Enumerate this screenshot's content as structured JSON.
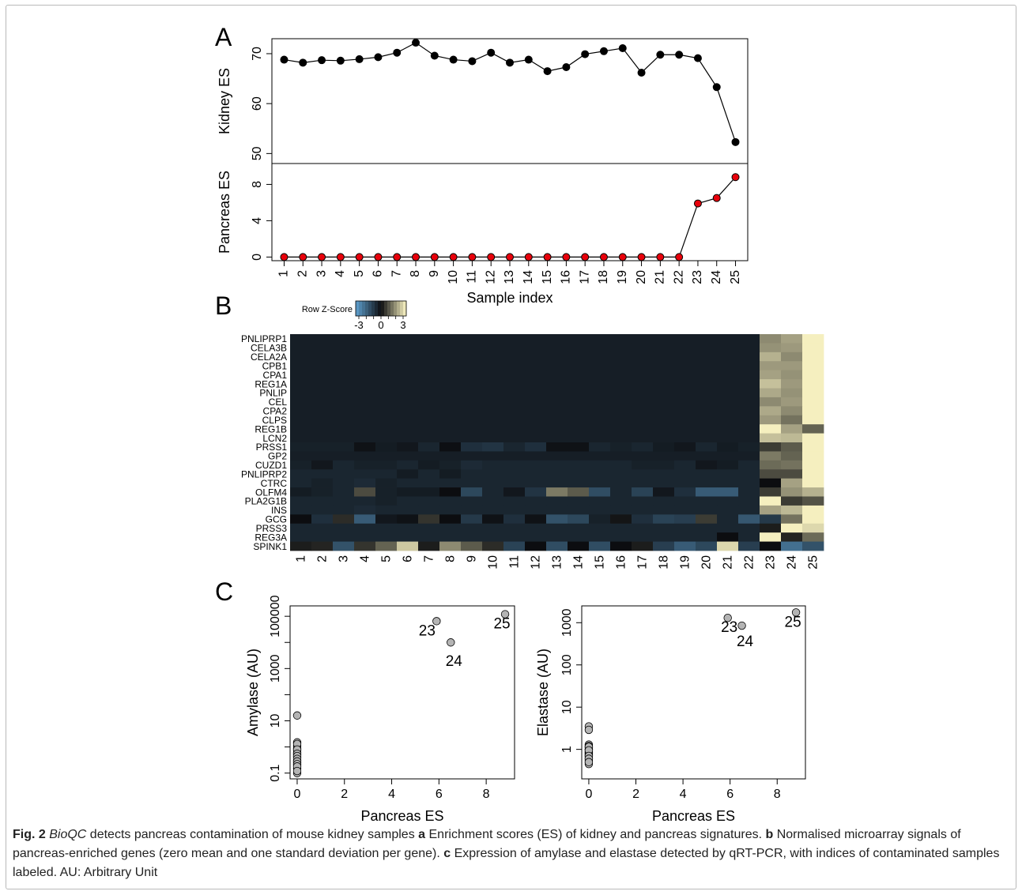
{
  "caption": {
    "fig_number": "Fig. 2",
    "tool_name": "BioQC",
    "lead": " detects pancreas contamination of mouse kidney samples ",
    "a_letter": "a",
    "a_text": " Enrichment scores (ES) of kidney and pancreas signatures. ",
    "b_letter": "b",
    "b_text": " Normalised microarray signals of pancreas-enriched genes (zero mean and one standard deviation per gene). ",
    "c_letter": "c",
    "c_text": " Expression of amylase and elastase detected by qRT-PCR, with indices of contaminated samples labeled. AU: Arbitrary Unit"
  },
  "chart_data": [
    {
      "type": "line",
      "panel_label": "A",
      "ylabel": "Kidney ES",
      "x": [
        1,
        2,
        3,
        4,
        5,
        6,
        7,
        8,
        9,
        10,
        11,
        12,
        13,
        14,
        15,
        16,
        17,
        18,
        19,
        20,
        21,
        22,
        23,
        24,
        25
      ],
      "y": [
        68.8,
        68.2,
        68.7,
        68.6,
        68.9,
        69.3,
        70.2,
        72.2,
        69.6,
        68.8,
        68.5,
        70.2,
        68.2,
        68.8,
        66.5,
        67.3,
        69.9,
        70.5,
        71.1,
        66.2,
        69.8,
        69.8,
        69.1,
        63.3,
        52.3
      ],
      "yticks": [
        50,
        60,
        70
      ],
      "ylim": [
        48,
        73
      ],
      "marker_color": "#000000"
    },
    {
      "type": "line",
      "panel_label": "",
      "ylabel": "Pancreas ES",
      "xlabel": "Sample index",
      "x": [
        1,
        2,
        3,
        4,
        5,
        6,
        7,
        8,
        9,
        10,
        11,
        12,
        13,
        14,
        15,
        16,
        17,
        18,
        19,
        20,
        21,
        22,
        23,
        24,
        25
      ],
      "x_tick_labels": [
        "1",
        "2",
        "3",
        "4",
        "5",
        "6",
        "7",
        "8",
        "9",
        "10",
        "11",
        "12",
        "13",
        "14",
        "15",
        "16",
        "17",
        "18",
        "19",
        "20",
        "21",
        "22",
        "23",
        "24",
        "25"
      ],
      "y": [
        0,
        0,
        0,
        0,
        0,
        0,
        0,
        0,
        0,
        0,
        0,
        0,
        0,
        0,
        0,
        0,
        0,
        0,
        0,
        0,
        0,
        0,
        5.9,
        6.5,
        8.8
      ],
      "yticks": [
        0,
        4,
        8
      ],
      "ylim": [
        -0.4,
        10.3
      ],
      "marker_color": "#e8000b"
    },
    {
      "type": "heatmap",
      "panel_label": "B",
      "legend_title": "Row Z-Score",
      "legend_ticks": [
        "-3",
        "0",
        "3"
      ],
      "colors": {
        "low": "#5fa0cf",
        "mid": "#0c0d10",
        "high": "#fdf7c5"
      },
      "rows": [
        "PNLIPRP1",
        "CELA3B",
        "CELA2A",
        "CPB1",
        "CPA1",
        "REG1A",
        "PNLIP",
        "CEL",
        "CPA2",
        "CLPS",
        "REG1B",
        "LCN2",
        "PRSS1",
        "GP2",
        "CUZD1",
        "PNLIPRP2",
        "CTRC",
        "OLFM4",
        "PLA2G1B",
        "INS",
        "GCG",
        "PRSS3",
        "REG3A",
        "SPINK1"
      ],
      "columns": [
        "1",
        "2",
        "3",
        "4",
        "5",
        "6",
        "7",
        "8",
        "9",
        "10",
        "11",
        "12",
        "13",
        "14",
        "15",
        "16",
        "17",
        "18",
        "19",
        "20",
        "21",
        "22",
        "23",
        "24",
        "25"
      ],
      "values": [
        [
          -0.35,
          -0.35,
          -0.35,
          -0.35,
          -0.35,
          -0.35,
          -0.35,
          -0.35,
          -0.35,
          -0.35,
          -0.35,
          -0.35,
          -0.35,
          -0.35,
          -0.35,
          -0.35,
          -0.35,
          -0.35,
          -0.35,
          -0.35,
          -0.35,
          -0.35,
          1.6,
          1.9,
          2.9
        ],
        [
          -0.35,
          -0.35,
          -0.35,
          -0.35,
          -0.35,
          -0.35,
          -0.35,
          -0.35,
          -0.35,
          -0.35,
          -0.35,
          -0.35,
          -0.35,
          -0.35,
          -0.35,
          -0.35,
          -0.35,
          -0.35,
          -0.35,
          -0.35,
          -0.35,
          -0.35,
          1.7,
          1.8,
          2.9
        ],
        [
          -0.35,
          -0.35,
          -0.35,
          -0.35,
          -0.35,
          -0.35,
          -0.35,
          -0.35,
          -0.35,
          -0.35,
          -0.35,
          -0.35,
          -0.35,
          -0.35,
          -0.35,
          -0.35,
          -0.35,
          -0.35,
          -0.35,
          -0.35,
          -0.35,
          -0.35,
          2.1,
          1.6,
          2.9
        ],
        [
          -0.35,
          -0.35,
          -0.35,
          -0.35,
          -0.35,
          -0.35,
          -0.35,
          -0.35,
          -0.35,
          -0.35,
          -0.35,
          -0.35,
          -0.35,
          -0.35,
          -0.35,
          -0.35,
          -0.35,
          -0.35,
          -0.35,
          -0.35,
          -0.35,
          -0.35,
          1.8,
          1.8,
          2.9
        ],
        [
          -0.35,
          -0.35,
          -0.35,
          -0.35,
          -0.35,
          -0.35,
          -0.35,
          -0.35,
          -0.35,
          -0.35,
          -0.35,
          -0.35,
          -0.35,
          -0.35,
          -0.35,
          -0.35,
          -0.35,
          -0.35,
          -0.35,
          -0.35,
          -0.35,
          -0.35,
          1.9,
          1.7,
          2.9
        ],
        [
          -0.35,
          -0.35,
          -0.35,
          -0.35,
          -0.35,
          -0.35,
          -0.35,
          -0.35,
          -0.35,
          -0.35,
          -0.35,
          -0.35,
          -0.35,
          -0.35,
          -0.35,
          -0.35,
          -0.35,
          -0.35,
          -0.35,
          -0.35,
          -0.35,
          -0.35,
          2.3,
          1.8,
          2.9
        ],
        [
          -0.35,
          -0.35,
          -0.35,
          -0.35,
          -0.35,
          -0.35,
          -0.35,
          -0.35,
          -0.35,
          -0.35,
          -0.35,
          -0.35,
          -0.35,
          -0.35,
          -0.35,
          -0.35,
          -0.35,
          -0.35,
          -0.35,
          -0.35,
          -0.35,
          -0.35,
          2.0,
          1.7,
          2.9
        ],
        [
          -0.35,
          -0.35,
          -0.35,
          -0.35,
          -0.35,
          -0.35,
          -0.35,
          -0.35,
          -0.35,
          -0.35,
          -0.35,
          -0.35,
          -0.35,
          -0.35,
          -0.35,
          -0.35,
          -0.35,
          -0.35,
          -0.35,
          -0.35,
          -0.35,
          -0.35,
          1.6,
          1.8,
          2.9
        ],
        [
          -0.35,
          -0.35,
          -0.35,
          -0.35,
          -0.35,
          -0.35,
          -0.35,
          -0.35,
          -0.35,
          -0.35,
          -0.35,
          -0.35,
          -0.35,
          -0.35,
          -0.35,
          -0.35,
          -0.35,
          -0.35,
          -0.35,
          -0.35,
          -0.35,
          -0.35,
          2.0,
          1.6,
          2.9
        ],
        [
          -0.35,
          -0.35,
          -0.35,
          -0.35,
          -0.35,
          -0.35,
          -0.35,
          -0.35,
          -0.35,
          -0.35,
          -0.35,
          -0.35,
          -0.35,
          -0.35,
          -0.35,
          -0.35,
          -0.35,
          -0.35,
          -0.35,
          -0.35,
          -0.35,
          -0.35,
          1.8,
          1.3,
          2.9
        ],
        [
          -0.35,
          -0.35,
          -0.35,
          -0.35,
          -0.35,
          -0.35,
          -0.35,
          -0.35,
          -0.35,
          -0.35,
          -0.35,
          -0.35,
          -0.35,
          -0.35,
          -0.35,
          -0.35,
          -0.35,
          -0.35,
          -0.35,
          -0.35,
          -0.35,
          -0.35,
          2.9,
          1.9,
          1.1
        ],
        [
          -0.35,
          -0.35,
          -0.35,
          -0.35,
          -0.35,
          -0.35,
          -0.35,
          -0.35,
          -0.35,
          -0.35,
          -0.35,
          -0.35,
          -0.35,
          -0.35,
          -0.35,
          -0.35,
          -0.35,
          -0.35,
          -0.35,
          -0.35,
          -0.35,
          -0.35,
          2.3,
          2.2,
          2.9
        ],
        [
          -0.4,
          -0.4,
          -0.4,
          -0.1,
          -0.3,
          -0.2,
          -0.5,
          -0.05,
          -0.7,
          -0.8,
          -0.5,
          -0.7,
          -0.1,
          -0.1,
          -0.5,
          -0.4,
          -0.5,
          -0.3,
          -0.2,
          -0.5,
          -0.3,
          -0.4,
          0.6,
          1.0,
          2.9
        ],
        [
          -0.35,
          -0.35,
          -0.35,
          -0.35,
          -0.35,
          -0.35,
          -0.35,
          -0.35,
          -0.35,
          -0.35,
          -0.35,
          -0.35,
          -0.35,
          -0.35,
          -0.35,
          -0.35,
          -0.35,
          -0.35,
          -0.35,
          -0.35,
          -0.35,
          -0.35,
          1.4,
          1.1,
          2.9
        ],
        [
          -0.4,
          -0.2,
          -0.5,
          -0.4,
          -0.4,
          -0.5,
          -0.3,
          -0.4,
          -0.6,
          -0.5,
          -0.5,
          -0.5,
          -0.5,
          -0.5,
          -0.5,
          -0.5,
          -0.4,
          -0.4,
          -0.5,
          -0.2,
          -0.3,
          -0.5,
          1.2,
          1.3,
          2.9
        ],
        [
          -0.5,
          -0.5,
          -0.5,
          -0.5,
          -0.5,
          -0.3,
          -0.5,
          -0.3,
          -0.5,
          -0.5,
          -0.5,
          -0.5,
          -0.5,
          -0.5,
          -0.5,
          -0.5,
          -0.5,
          -0.5,
          -0.5,
          -0.5,
          -0.5,
          -0.5,
          0.8,
          0.8,
          2.9
        ],
        [
          -0.5,
          -0.4,
          -0.5,
          -0.6,
          -0.4,
          -0.5,
          -0.5,
          -0.5,
          -0.5,
          -0.5,
          -0.5,
          -0.5,
          -0.5,
          -0.5,
          -0.5,
          -0.5,
          -0.5,
          -0.5,
          -0.5,
          -0.5,
          -0.5,
          -0.5,
          0.0,
          1.9,
          2.9
        ],
        [
          -0.3,
          -0.4,
          -0.5,
          0.8,
          -0.4,
          -0.3,
          -0.3,
          0.0,
          -1.2,
          -0.5,
          -0.2,
          -0.8,
          1.4,
          1.0,
          -1.3,
          -0.5,
          -1.1,
          -0.2,
          -0.7,
          -1.6,
          -1.6,
          -0.5,
          0.6,
          1.7,
          2.1
        ],
        [
          -0.5,
          -0.5,
          -0.5,
          -0.5,
          -0.4,
          -0.5,
          -0.5,
          -0.5,
          -0.5,
          -0.5,
          -0.5,
          -0.5,
          -0.5,
          -0.5,
          -0.5,
          -0.5,
          -0.5,
          -0.5,
          -0.5,
          -0.5,
          -0.5,
          -0.5,
          2.9,
          0.6,
          0.9
        ],
        [
          -0.5,
          -0.5,
          -0.5,
          -0.6,
          -0.5,
          -0.5,
          -0.5,
          -0.5,
          -0.5,
          -0.5,
          -0.5,
          -0.5,
          -0.5,
          -0.5,
          -0.5,
          -0.5,
          -0.5,
          -0.5,
          -0.5,
          -0.5,
          -0.5,
          -0.5,
          1.9,
          2.2,
          2.9
        ],
        [
          0.0,
          -0.7,
          0.4,
          -1.6,
          -0.2,
          -0.1,
          0.5,
          0.0,
          -0.9,
          -0.1,
          -0.7,
          -0.1,
          -1.4,
          -1.2,
          -0.4,
          0.1,
          -0.7,
          -1.1,
          -1.0,
          0.6,
          -0.5,
          -1.5,
          -0.9,
          1.3,
          2.9
        ],
        [
          -0.5,
          -0.5,
          -0.5,
          -0.5,
          -0.5,
          -0.5,
          -0.5,
          -0.5,
          -0.5,
          -0.5,
          -0.5,
          -0.5,
          -0.5,
          -0.5,
          -0.5,
          -0.5,
          -0.5,
          -0.5,
          -0.5,
          -0.5,
          -0.5,
          -0.5,
          0.2,
          2.9,
          2.6
        ],
        [
          -0.5,
          -0.5,
          -0.5,
          -0.5,
          -0.5,
          -0.5,
          -0.5,
          -0.5,
          -0.5,
          -0.5,
          -0.5,
          -0.5,
          -0.5,
          -0.5,
          -0.5,
          -0.5,
          -0.5,
          -0.5,
          -0.5,
          -0.5,
          0.0,
          -0.5,
          2.9,
          0.3,
          1.2
        ],
        [
          0.2,
          0.3,
          -1.4,
          0.5,
          1.1,
          2.4,
          0.2,
          1.6,
          1.0,
          0.4,
          -1.1,
          0.0,
          -1.3,
          0.0,
          -1.3,
          0.0,
          0.2,
          -1.0,
          -1.6,
          -1.2,
          2.6,
          -1.0,
          0.0,
          -2.0,
          -1.4
        ]
      ]
    },
    {
      "type": "scatter",
      "panel_label": "C",
      "xlabel": "Pancreas ES",
      "ylabel": "Amylase (AU)",
      "y_scale": "log",
      "x_ticks": [
        0,
        2,
        4,
        6,
        8
      ],
      "y_ticks": [
        0.1,
        10,
        1000,
        100000
      ],
      "y_tick_labels": [
        "0.1",
        "10",
        "1000",
        "100000"
      ],
      "xlim": [
        -0.3,
        9.2
      ],
      "ylim": [
        0.06,
        250000
      ],
      "x": [
        0,
        0,
        0,
        0,
        0,
        0,
        0,
        0,
        0,
        0,
        0,
        0,
        0,
        0,
        0,
        0,
        0,
        0,
        0,
        0,
        0,
        0,
        5.9,
        6.5,
        8.8
      ],
      "y": [
        16,
        1.5,
        1.1,
        0.9,
        0.75,
        0.6,
        0.5,
        0.4,
        0.3,
        0.25,
        0.2,
        0.15,
        0.1,
        1.3,
        0.8,
        0.55,
        0.45,
        0.35,
        0.28,
        0.22,
        0.18,
        0.12,
        65000,
        10000,
        120000
      ],
      "point_labels": [
        {
          "index": 22,
          "text": "23"
        },
        {
          "index": 23,
          "text": "24"
        },
        {
          "index": 24,
          "text": "25"
        }
      ],
      "point_color": "#b4b4b4"
    },
    {
      "type": "scatter",
      "panel_label": "",
      "xlabel": "Pancreas ES",
      "ylabel": "Elastase (AU)",
      "y_scale": "log",
      "x_ticks": [
        0,
        2,
        4,
        6,
        8
      ],
      "y_ticks": [
        1,
        10,
        100,
        1000
      ],
      "y_tick_labels": [
        "1",
        "10",
        "100",
        "1000"
      ],
      "xlim": [
        -0.3,
        9.2
      ],
      "ylim": [
        0.2,
        2500
      ],
      "x": [
        0,
        0,
        0,
        0,
        0,
        0,
        0,
        0,
        0,
        0,
        0,
        0,
        0,
        0,
        0,
        0,
        0,
        0,
        0,
        0,
        0,
        0,
        5.9,
        6.5,
        8.8
      ],
      "y": [
        3.5,
        2.9,
        1.3,
        1.1,
        1.0,
        0.9,
        0.8,
        0.7,
        0.6,
        0.5,
        0.45,
        1.2,
        1.0,
        0.85,
        0.75,
        0.65,
        0.55,
        1.15,
        0.95,
        0.7,
        0.6,
        0.5,
        1300,
        850,
        1750
      ],
      "point_labels": [
        {
          "index": 22,
          "text": "23"
        },
        {
          "index": 23,
          "text": "24"
        },
        {
          "index": 24,
          "text": "25"
        }
      ],
      "point_color": "#b4b4b4"
    }
  ]
}
